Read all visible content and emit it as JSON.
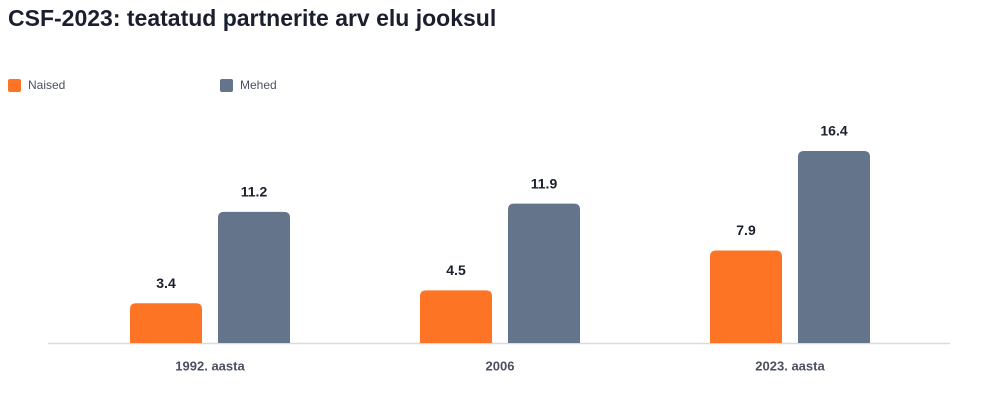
{
  "chart_data": {
    "type": "bar",
    "title": "CSF-2023: teatatud partnerite arv elu jooksul",
    "categories": [
      "1992. aasta",
      "2006",
      "2023. aasta"
    ],
    "series": [
      {
        "name": "Naised",
        "color": "#fd7424",
        "values": [
          3.4,
          4.5,
          7.9
        ]
      },
      {
        "name": "Mehed",
        "color": "#64748b",
        "values": [
          11.2,
          11.9,
          16.4
        ]
      }
    ]
  }
}
